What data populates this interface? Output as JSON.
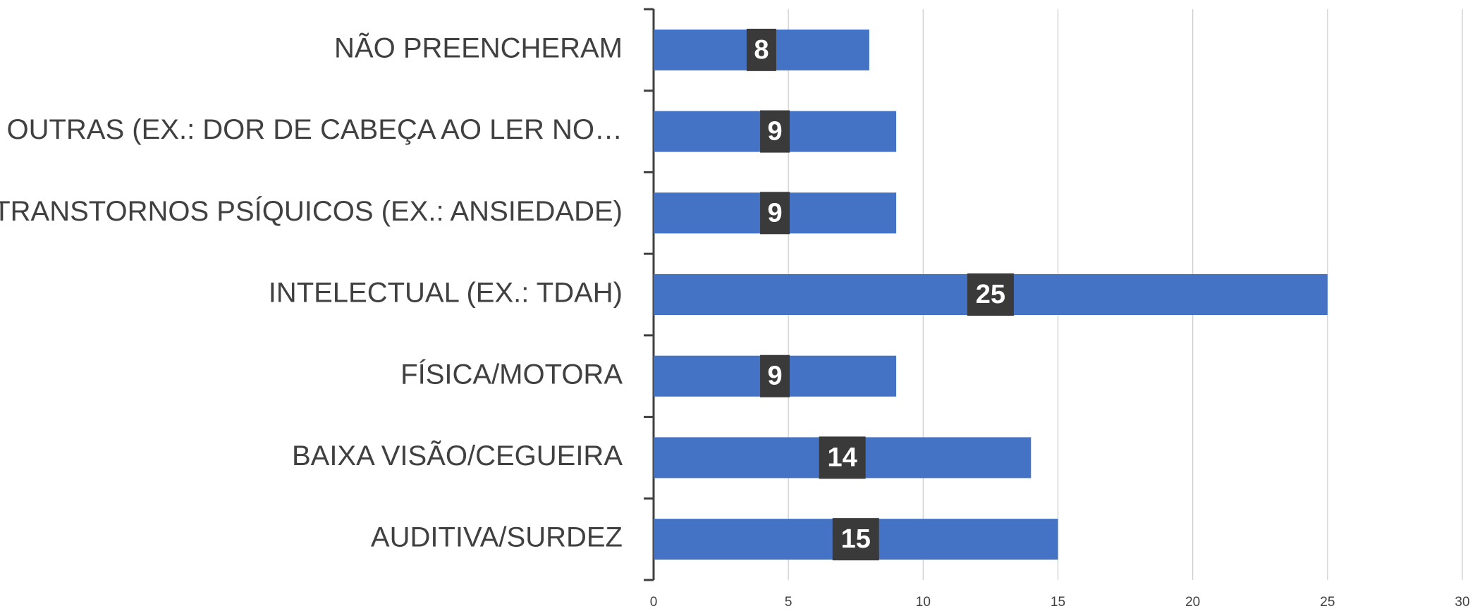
{
  "chart_data": {
    "type": "barh",
    "categories": [
      "NÃO PREENCHERAM",
      "OUTRAS (EX.: DOR DE CABEÇA AO LER NO…",
      "TRANSTORNOS PSÍQUICOS (EX.: ANSIEDADE)",
      "INTELECTUAL (EX.: TDAH)",
      "FÍSICA/MOTORA",
      "BAIXA VISÃO/CEGUEIRA",
      "AUDITIVA/SURDEZ"
    ],
    "values": [
      8,
      9,
      9,
      25,
      9,
      14,
      15
    ],
    "color": "#4472c4",
    "xlim": [
      0,
      30
    ],
    "xticks": [
      0,
      5,
      10,
      15,
      20,
      25,
      30
    ],
    "grid": true
  }
}
